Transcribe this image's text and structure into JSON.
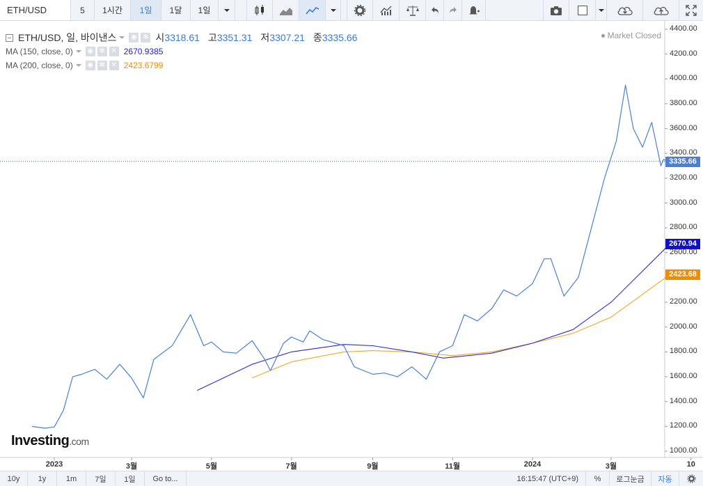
{
  "toolbar": {
    "symbol": "ETH/USD",
    "interval_value": "5",
    "intervals": [
      "1시간",
      "1일",
      "1달",
      "1일"
    ],
    "active_interval": 1
  },
  "legend": {
    "title": "ETH/USD, 일, 바이낸스",
    "open_label": "시",
    "open": "3318.61",
    "high_label": "고",
    "high": "3351.31",
    "low_label": "저",
    "low": "3307.21",
    "close_label": "종",
    "close": "3335.66",
    "ma150_label": "MA (150, close, 0)",
    "ma150_value": "2670.9385",
    "ma200_label": "MA (200, close, 0)",
    "ma200_value": "2423.6799"
  },
  "status": {
    "market": "Market Closed"
  },
  "price_tags": {
    "last": "3335.66",
    "ma150": "2670.94",
    "ma200": "2423.68"
  },
  "colors": {
    "price_line": "#4a7fd4",
    "ma150": "#2b2bd6",
    "ma200": "#f5a623",
    "accent": "#3a7bd5",
    "ma150_tag": "#1010c8",
    "ma200_tag": "#f08c00"
  },
  "logo": {
    "main": "Investing",
    "suffix": ".com"
  },
  "chart_data": {
    "type": "line",
    "yaxis_ticks": [
      "4400.00",
      "4200.00",
      "4000.00",
      "3800.00",
      "3600.00",
      "3400.00",
      "3200.00",
      "3000.00",
      "2800.00",
      "2600.00",
      "2400.00",
      "2200.00",
      "2000.00",
      "1800.00",
      "1600.00",
      "1400.00",
      "1200.00",
      "1000.00"
    ],
    "ylim": [
      950,
      4440
    ],
    "xaxis_ticks": [
      "2023",
      "3월",
      "5월",
      "7월",
      "9월",
      "11월",
      "2024",
      "3월",
      "10"
    ],
    "series": [
      {
        "name": "ETH/USD",
        "x": [
          "2022-12-15",
          "2022-12-25",
          "2023-01-01",
          "2023-01-08",
          "2023-01-15",
          "2023-01-22",
          "2023-02-01",
          "2023-02-10",
          "2023-02-20",
          "2023-03-01",
          "2023-03-10",
          "2023-03-18",
          "2023-04-01",
          "2023-04-15",
          "2023-04-25",
          "2023-05-01",
          "2023-05-10",
          "2023-05-20",
          "2023-06-01",
          "2023-06-10",
          "2023-06-15",
          "2023-06-25",
          "2023-07-01",
          "2023-07-10",
          "2023-07-15",
          "2023-07-25",
          "2023-08-10",
          "2023-08-18",
          "2023-09-01",
          "2023-09-10",
          "2023-09-20",
          "2023-10-01",
          "2023-10-12",
          "2023-10-22",
          "2023-11-01",
          "2023-11-10",
          "2023-11-20",
          "2023-12-01",
          "2023-12-10",
          "2023-12-20",
          "2024-01-01",
          "2024-01-10",
          "2024-01-15",
          "2024-01-25",
          "2024-02-05",
          "2024-02-15",
          "2024-02-25",
          "2024-03-05",
          "2024-03-12",
          "2024-03-18",
          "2024-03-25",
          "2024-04-01",
          "2024-04-08",
          "2024-04-10",
          "2024-04-15"
        ],
        "values": [
          1200,
          1185,
          1195,
          1330,
          1600,
          1620,
          1660,
          1580,
          1700,
          1590,
          1430,
          1740,
          1850,
          2100,
          1850,
          1880,
          1800,
          1790,
          1890,
          1750,
          1650,
          1870,
          1920,
          1880,
          1970,
          1900,
          1850,
          1680,
          1620,
          1630,
          1600,
          1680,
          1580,
          1800,
          1850,
          2100,
          2050,
          2150,
          2300,
          2250,
          2350,
          2550,
          2550,
          2250,
          2400,
          2800,
          3200,
          3500,
          3950,
          3600,
          3450,
          3650,
          3300,
          3350,
          3335
        ]
      },
      {
        "name": "MA (150, close, 0)",
        "x": [
          "2023-04-20",
          "2023-06-01",
          "2023-07-01",
          "2023-08-10",
          "2023-09-01",
          "2023-10-01",
          "2023-10-25",
          "2023-12-01",
          "2024-01-01",
          "2024-02-01",
          "2024-03-01",
          "2024-04-15"
        ],
        "values": [
          1490,
          1700,
          1800,
          1860,
          1850,
          1800,
          1750,
          1790,
          1870,
          1980,
          2200,
          2671
        ]
      },
      {
        "name": "MA (200, close, 0)",
        "x": [
          "2023-06-01",
          "2023-07-01",
          "2023-08-10",
          "2023-09-01",
          "2023-10-01",
          "2023-11-01",
          "2023-12-01",
          "2024-01-01",
          "2024-02-01",
          "2024-03-01",
          "2024-04-15"
        ],
        "values": [
          1590,
          1720,
          1800,
          1810,
          1800,
          1770,
          1800,
          1870,
          1950,
          2080,
          2424
        ]
      }
    ],
    "last_value": 3335.66,
    "grid": false,
    "legend": "top-left"
  },
  "bottombar": {
    "ranges": [
      "10y",
      "1y",
      "1m",
      "7일",
      "1일"
    ],
    "goto": "Go to...",
    "time": "16:15:47 (UTC+9)",
    "percent": "%",
    "log": "로그눈금",
    "auto": "자동"
  }
}
